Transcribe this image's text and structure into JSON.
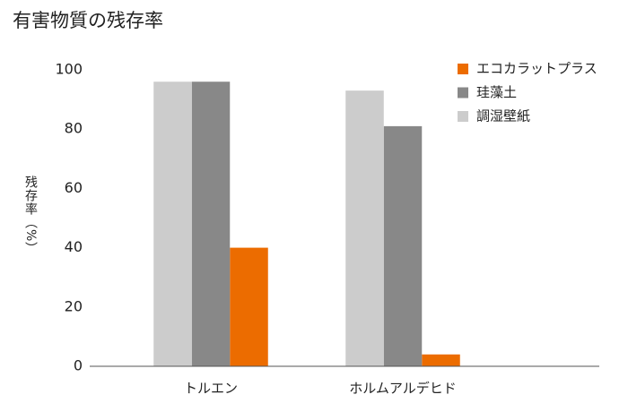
{
  "chart_data": {
    "type": "bar",
    "title": "有害物質の残存率",
    "y_label": "残存率（%）",
    "categories": [
      "トルエン",
      "ホルムアルデヒド"
    ],
    "series": [
      {
        "name": "エコカラットプラス",
        "color": "#ec6c00",
        "values": [
          40,
          4
        ]
      },
      {
        "name": "珪藻土",
        "color": "#888888",
        "values": [
          96,
          81
        ]
      },
      {
        "name": "調湿壁紙",
        "color": "#cccccc",
        "values": [
          96,
          93
        ]
      }
    ],
    "ylim": [
      0,
      100
    ],
    "yticks": [
      0,
      20,
      40,
      60,
      80,
      100
    ],
    "grid": false,
    "legend": "top-right"
  }
}
